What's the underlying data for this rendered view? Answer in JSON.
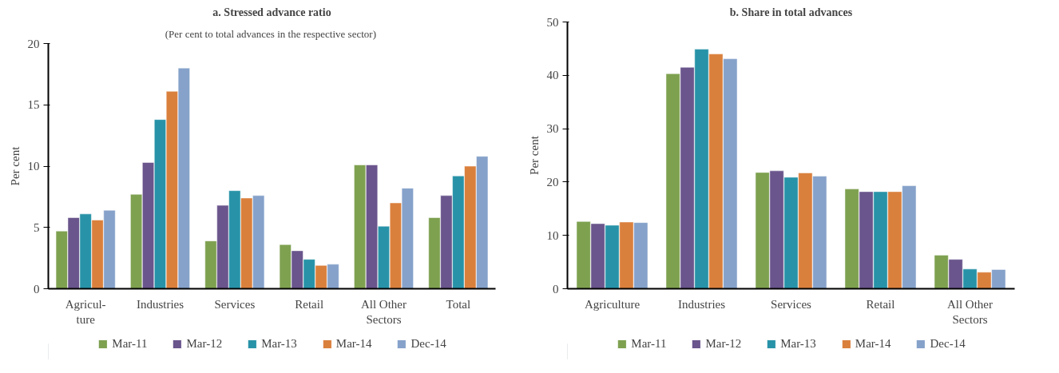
{
  "chart_data": [
    {
      "type": "bar",
      "title": "a. Stressed advance ratio",
      "subtitle": "(Per cent to total advances in the respective  sector)",
      "ylabel": "Per cent",
      "categories": [
        "Agricul-\nture",
        "Industries",
        "Services",
        "Retail",
        "All Other\nSectors",
        "Total"
      ],
      "series": [
        {
          "name": "Mar-11",
          "color": "#7ea150",
          "values": [
            4.7,
            7.7,
            3.9,
            3.6,
            10.1,
            5.8
          ]
        },
        {
          "name": "Mar-12",
          "color": "#6a558c",
          "values": [
            5.8,
            10.3,
            6.8,
            3.1,
            10.1,
            7.6
          ]
        },
        {
          "name": "Mar-13",
          "color": "#2893a8",
          "values": [
            6.1,
            13.8,
            8.0,
            2.4,
            5.1,
            9.2
          ]
        },
        {
          "name": "Mar-14",
          "color": "#da803d",
          "values": [
            5.6,
            16.1,
            7.4,
            1.9,
            7.0,
            10.0
          ]
        },
        {
          "name": "Dec-14",
          "color": "#86a2ca",
          "values": [
            6.4,
            18.0,
            7.6,
            2.0,
            8.2,
            10.8
          ]
        }
      ],
      "ylim": [
        0,
        20
      ],
      "yticks": [
        0,
        5,
        10,
        15,
        20
      ],
      "grid": false,
      "legend": "bottom"
    },
    {
      "type": "bar",
      "title": "b. Share in total advances",
      "ylabel": "Per cent",
      "categories": [
        "Agriculture",
        "Industries",
        "Services",
        "Retail",
        "All Other\nSectors"
      ],
      "series": [
        {
          "name": "Mar-11",
          "color": "#7ea150",
          "values": [
            12.6,
            40.3,
            21.8,
            18.7,
            6.3
          ]
        },
        {
          "name": "Mar-12",
          "color": "#6a558c",
          "values": [
            12.2,
            41.5,
            22.1,
            18.2,
            5.5
          ]
        },
        {
          "name": "Mar-13",
          "color": "#2893a8",
          "values": [
            11.9,
            44.9,
            20.9,
            18.2,
            3.7
          ]
        },
        {
          "name": "Mar-14",
          "color": "#da803d",
          "values": [
            12.5,
            44.0,
            21.7,
            18.2,
            3.1
          ]
        },
        {
          "name": "Dec-14",
          "color": "#86a2ca",
          "values": [
            12.4,
            43.1,
            21.1,
            19.3,
            3.6
          ]
        }
      ],
      "ylim": [
        0,
        50
      ],
      "yticks": [
        0,
        10,
        20,
        30,
        40,
        50
      ],
      "grid": false,
      "legend": "bottom"
    }
  ]
}
